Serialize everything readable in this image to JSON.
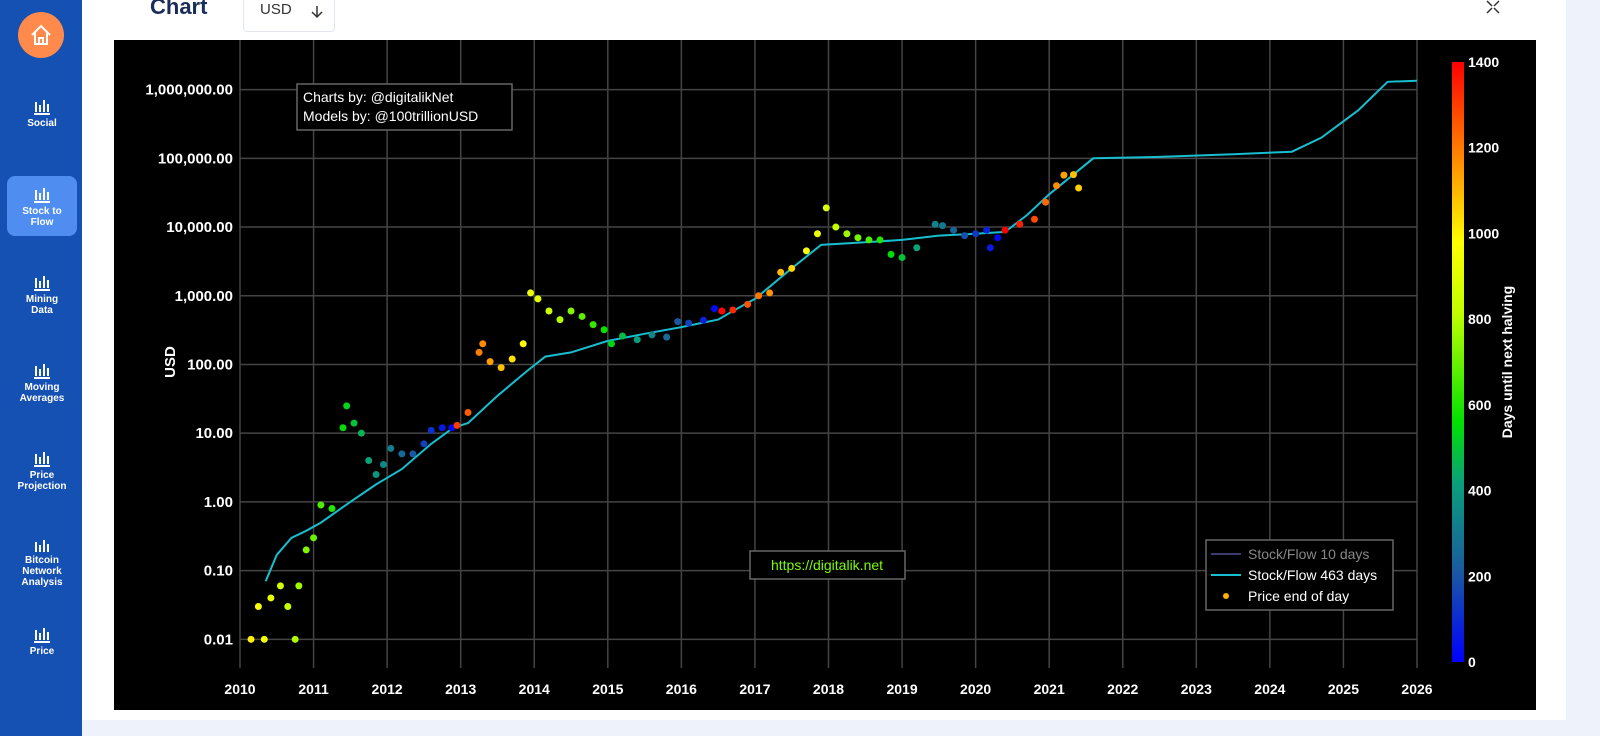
{
  "sidebar": {
    "items": [
      {
        "label": "Social"
      },
      {
        "label": "Stock to Flow",
        "active": true
      },
      {
        "label": "Mining Data"
      },
      {
        "label": "Moving Averages"
      },
      {
        "label": "Price Projection"
      },
      {
        "label": "Bitcoin Network Analysis"
      },
      {
        "label": "Price"
      }
    ]
  },
  "header": {
    "title": "Chart",
    "currency": "USD"
  },
  "chart_data": {
    "type": "scatter",
    "y_label": "USD",
    "log_y": true,
    "grid": true,
    "legend": "lower right",
    "xlim": [
      2010,
      2026
    ],
    "xticks": [
      2010,
      2011,
      2012,
      2013,
      2014,
      2015,
      2016,
      2017,
      2018,
      2019,
      2020,
      2021,
      2022,
      2023,
      2024,
      2025,
      2026
    ],
    "ylim": [
      0.005,
      2700000
    ],
    "yticks": [
      {
        "value": 0.01,
        "label": "0.01"
      },
      {
        "value": 0.1,
        "label": "0.10"
      },
      {
        "value": 1,
        "label": "1.00"
      },
      {
        "value": 10,
        "label": "10.00"
      },
      {
        "value": 100,
        "label": "100.00"
      },
      {
        "value": 1000,
        "label": "1,000.00"
      },
      {
        "value": 10000,
        "label": "10,000.00"
      },
      {
        "value": 100000,
        "label": "100,000.00"
      },
      {
        "value": 1000000,
        "label": "1,000,000.00"
      }
    ],
    "colorbar": {
      "title": "Days until next halving",
      "range": [
        0,
        1400
      ],
      "ticks": [
        0,
        200,
        400,
        600,
        800,
        1000,
        1200,
        1400
      ],
      "colorscale": [
        [
          0,
          "#0000ff"
        ],
        [
          0.15,
          "#1a5aa0"
        ],
        [
          0.3,
          "#0aa07a"
        ],
        [
          0.4,
          "#00e000"
        ],
        [
          0.58,
          "#bfff00"
        ],
        [
          0.7,
          "#ffff00"
        ],
        [
          0.82,
          "#ff9900"
        ],
        [
          1,
          "#ff0000"
        ]
      ]
    },
    "annotations": [
      "Charts by: @digitalikNet",
      "Models by: @100trillionUSD",
      "https://digitalik.net"
    ],
    "series": [
      {
        "name": "Stock/Flow 10 days",
        "color": "#3d3d6b",
        "visible": false
      },
      {
        "name": "Stock/Flow 463 days",
        "color": "#17becf",
        "mode": "line",
        "x": [
          2010.35,
          2010.5,
          2010.7,
          2010.9,
          2011.1,
          2011.5,
          2011.85,
          2012.2,
          2012.6,
          2012.9,
          2013.1,
          2013.5,
          2013.9,
          2014.15,
          2014.5,
          2015.0,
          2015.5,
          2016.0,
          2016.5,
          2016.7,
          2017.0,
          2017.5,
          2017.9,
          2018.5,
          2019.0,
          2019.5,
          2020.0,
          2020.4,
          2020.7,
          2021.0,
          2021.6,
          2022.5,
          2023.5,
          2024.3,
          2024.7,
          2025.2,
          2025.6,
          2026
        ],
        "values": [
          0.07,
          0.17,
          0.3,
          0.38,
          0.5,
          1.0,
          1.8,
          3,
          7,
          12,
          14,
          35,
          80,
          130,
          150,
          220,
          280,
          350,
          450,
          600,
          900,
          2500,
          5500,
          6000,
          6500,
          7500,
          8000,
          8500,
          15000,
          30000,
          100000,
          105000,
          115000,
          125000,
          200000,
          500000,
          1300000,
          1350000
        ]
      },
      {
        "name": "Price end of day",
        "color": "#ffb000",
        "mode": "markers",
        "x": [
          2010.15,
          2010.25,
          2010.33,
          2010.42,
          2010.55,
          2010.65,
          2010.75,
          2010.8,
          2010.9,
          2011.0,
          2011.1,
          2011.25,
          2011.4,
          2011.45,
          2011.55,
          2011.65,
          2011.75,
          2011.85,
          2011.95,
          2012.05,
          2012.2,
          2012.35,
          2012.5,
          2012.6,
          2012.75,
          2012.88,
          2012.95,
          2013.1,
          2013.25,
          2013.3,
          2013.4,
          2013.55,
          2013.7,
          2013.85,
          2013.95,
          2014.05,
          2014.2,
          2014.35,
          2014.5,
          2014.65,
          2014.8,
          2014.95,
          2015.05,
          2015.2,
          2015.4,
          2015.6,
          2015.8,
          2015.95,
          2016.1,
          2016.3,
          2016.45,
          2016.55,
          2016.7,
          2016.9,
          2017.05,
          2017.2,
          2017.35,
          2017.5,
          2017.7,
          2017.85,
          2017.97,
          2018.1,
          2018.25,
          2018.4,
          2018.55,
          2018.7,
          2018.85,
          2019.0,
          2019.2,
          2019.45,
          2019.55,
          2019.7,
          2019.85,
          2020.0,
          2020.15,
          2020.2,
          2020.3,
          2020.4,
          2020.6,
          2020.8,
          2020.95,
          2021.1,
          2021.2,
          2021.33,
          2021.4
        ],
        "values": [
          0.01,
          0.03,
          0.01,
          0.04,
          0.06,
          0.03,
          0.01,
          0.06,
          0.2,
          0.3,
          0.9,
          0.8,
          12,
          25,
          14,
          10,
          4,
          2.5,
          3.5,
          6,
          5,
          5,
          7,
          11,
          12,
          12,
          13,
          20,
          150,
          200,
          110,
          90,
          120,
          200,
          1100,
          900,
          600,
          450,
          600,
          500,
          380,
          320,
          200,
          260,
          230,
          270,
          250,
          420,
          400,
          440,
          650,
          600,
          620,
          750,
          1000,
          1100,
          2200,
          2500,
          4500,
          8000,
          19000,
          10000,
          8000,
          7000,
          6500,
          6500,
          4000,
          3600,
          5000,
          11000,
          10500,
          9000,
          7500,
          8000,
          9000,
          5000,
          7000,
          9000,
          11000,
          13000,
          23000,
          40000,
          57000,
          58000,
          37000
        ],
        "color_values": [
          1007,
          971,
          942,
          913,
          865,
          829,
          788,
          771,
          734,
          697,
          661,
          606,
          551,
          533,
          496,
          460,
          423,
          387,
          350,
          314,
          259,
          204,
          150,
          113,
          58,
          11,
          1301,
          1248,
          1194,
          1175,
          1139,
          1084,
          1029,
          975,
          938,
          902,
          847,
          792,
          737,
          682,
          628,
          573,
          536,
          482,
          409,
          336,
          263,
          208,
          153,
          80,
          26,
          1388,
          1336,
          1263,
          1208,
          1154,
          1099,
          1044,
          971,
          916,
          872,
          825,
          770,
          716,
          661,
          606,
          552,
          496,
          423,
          332,
          296,
          241,
          186,
          131,
          77,
          58,
          22,
          1420,
          1350,
          1278,
          1223,
          1168,
          1132,
          1084,
          1059
        ]
      }
    ]
  }
}
